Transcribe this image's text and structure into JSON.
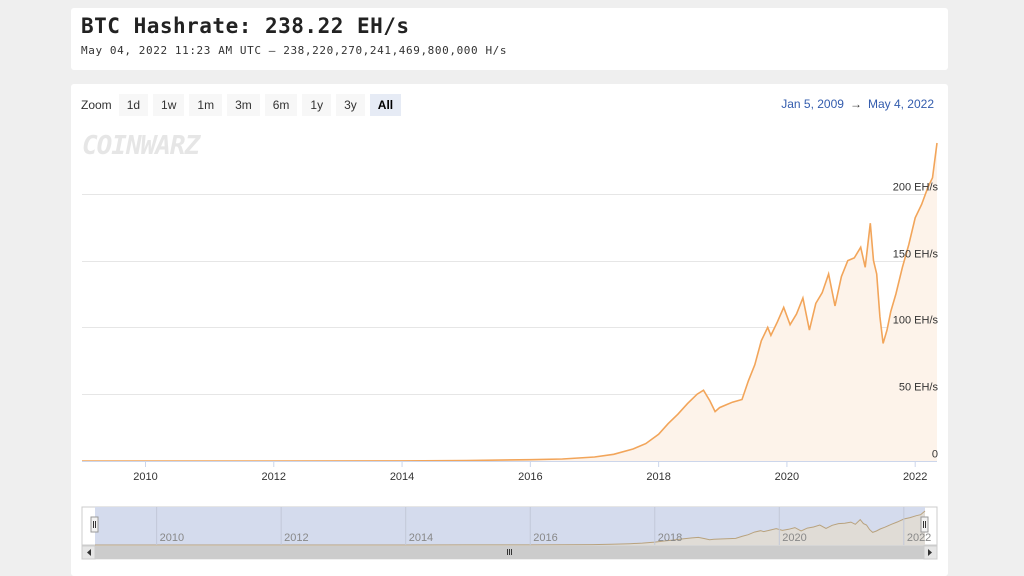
{
  "header": {
    "title": "BTC Hashrate: 238.22 EH/s",
    "subtitle": "May 04, 2022 11:23 AM UTC  –  238,220,270,241,469,800,000 H/s"
  },
  "toolbar": {
    "zoom_label": "Zoom",
    "buttons": [
      "1d",
      "1w",
      "1m",
      "3m",
      "6m",
      "1y",
      "3y",
      "All"
    ],
    "active": "All"
  },
  "range": {
    "from": "Jan 5, 2009",
    "arrow": "→",
    "to": "May 4, 2022"
  },
  "watermark": "COINWARZ",
  "colors": {
    "line": "#f2a55a",
    "area": "#fdf3ea",
    "navigator_mask": "#d4dbed",
    "grid": "#e6e6e6"
  },
  "chart_data": {
    "type": "area",
    "title": "BTC Hashrate",
    "xlabel": "",
    "ylabel": "",
    "x_ticks": [
      "2010",
      "2012",
      "2014",
      "2016",
      "2018",
      "2020",
      "2022"
    ],
    "y_ticks": [
      "0",
      "50 EH/s",
      "100 EH/s",
      "150 EH/s",
      "200 EH/s"
    ],
    "ylim": [
      0,
      250
    ],
    "xlim": [
      2009.01,
      2022.34
    ],
    "grid": true,
    "series": [
      {
        "unit": "EH/s",
        "x": [
          2009.01,
          2012.0,
          2014.0,
          2015.0,
          2016.0,
          2016.5,
          2017.0,
          2017.3,
          2017.6,
          2017.8,
          2018.0,
          2018.15,
          2018.3,
          2018.45,
          2018.6,
          2018.7,
          2018.8,
          2018.88,
          2018.95,
          2019.05,
          2019.15,
          2019.3,
          2019.4,
          2019.5,
          2019.6,
          2019.7,
          2019.75,
          2019.85,
          2019.95,
          2020.05,
          2020.15,
          2020.25,
          2020.35,
          2020.45,
          2020.55,
          2020.65,
          2020.75,
          2020.85,
          2020.95,
          2021.05,
          2021.15,
          2021.22,
          2021.3,
          2021.35,
          2021.4,
          2021.45,
          2021.5,
          2021.56,
          2021.62,
          2021.7,
          2021.8,
          2021.9,
          2022.0,
          2022.1,
          2022.2,
          2022.27,
          2022.34
        ],
        "values": [
          0,
          0.01,
          0.1,
          0.4,
          1,
          1.5,
          3,
          5,
          9,
          13,
          20,
          28,
          35,
          43,
          50,
          53,
          45,
          37,
          40,
          42,
          44,
          46,
          60,
          72,
          90,
          100,
          94,
          104,
          115,
          102,
          110,
          122,
          98,
          118,
          126,
          140,
          116,
          138,
          150,
          152,
          160,
          145,
          178,
          150,
          140,
          108,
          88,
          98,
          112,
          125,
          145,
          162,
          182,
          192,
          205,
          212,
          238
        ]
      }
    ]
  }
}
